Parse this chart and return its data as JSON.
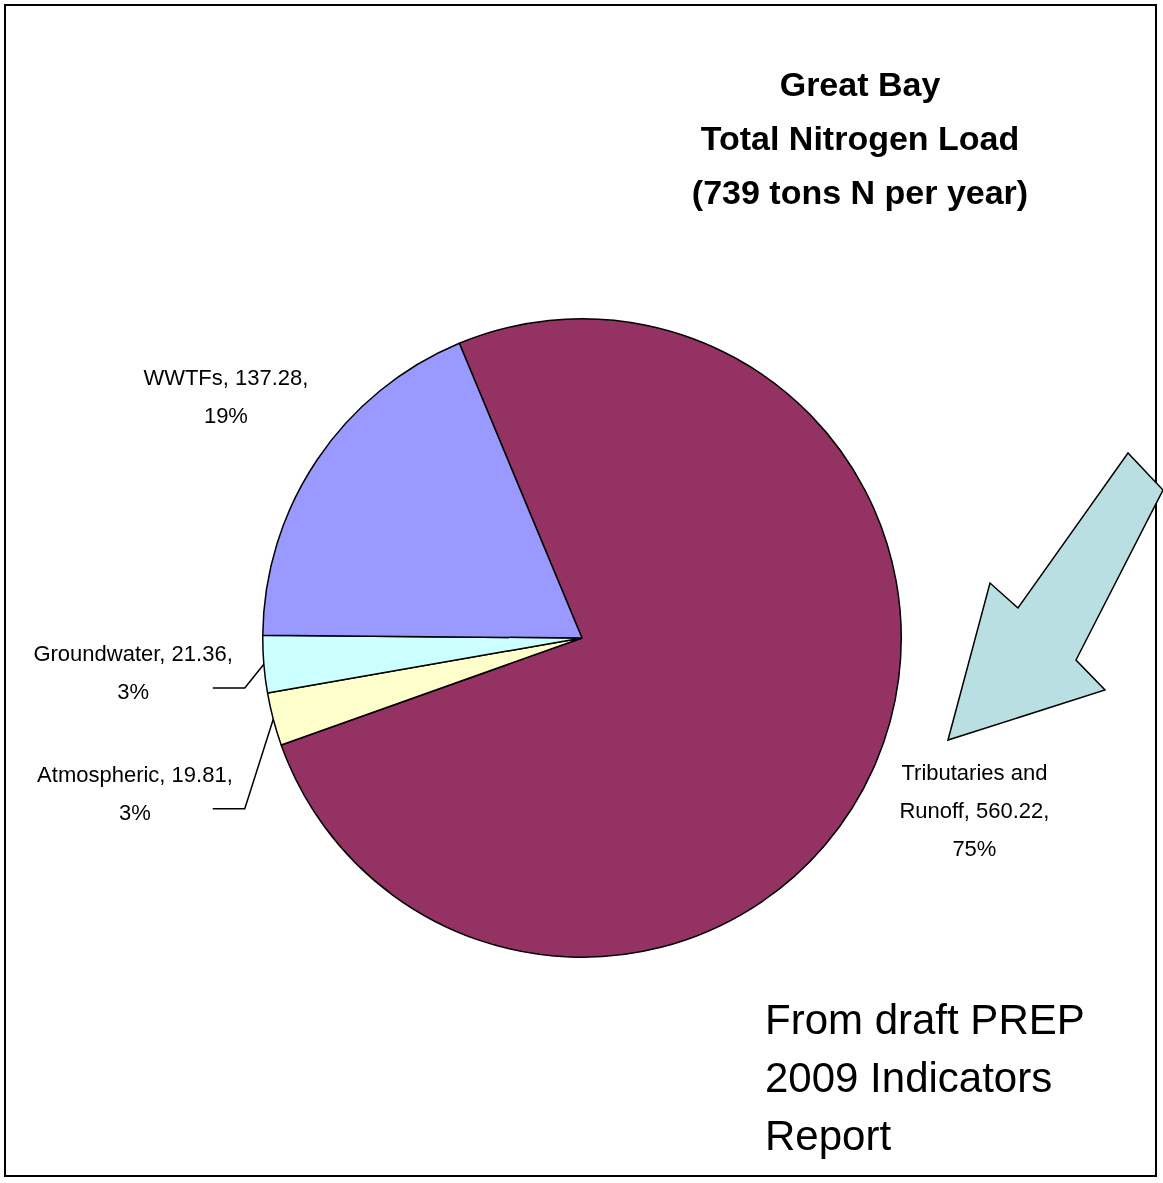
{
  "chart_data": {
    "type": "pie",
    "title": "Great Bay\nTotal Nitrogen Load\n(739 tons N per year)",
    "categories": [
      "Tributaries and Runoff",
      "Atmospheric",
      "Groundwater",
      "WWTFs"
    ],
    "values": [
      560.22,
      19.81,
      21.36,
      137.28
    ],
    "colors": [
      "#943264",
      "#ffffcc",
      "#ccffff",
      "#9999ff"
    ],
    "value_labels": [
      "560.22, 75%",
      "19.81, 3%",
      "21.36, 3%",
      "137.28, 19%"
    ],
    "annotations": [
      "From draft PREP 2009 Indicators Report"
    ]
  }
}
